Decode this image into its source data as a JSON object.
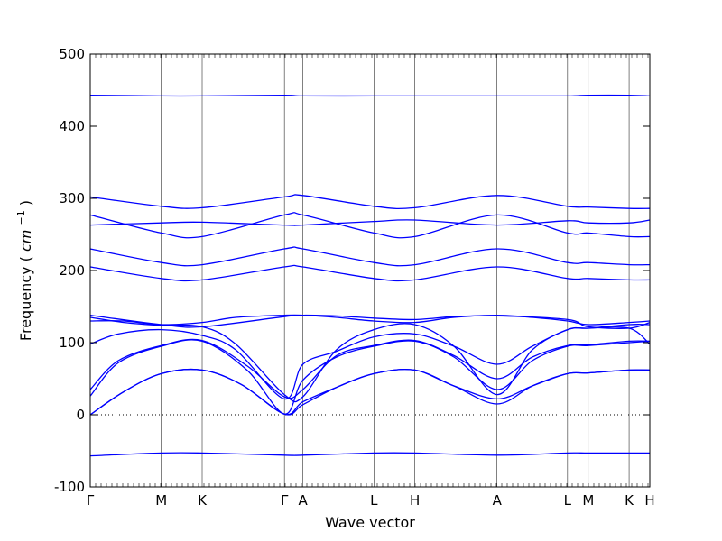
{
  "chart_data": {
    "type": "line",
    "xlabel": "Wave vector",
    "ylabel": "Frequency",
    "ylabel_unit_base": "cm",
    "ylabel_unit_exp": "−1",
    "ylim": [
      -100,
      500
    ],
    "yticks": [
      -100,
      0,
      100,
      200,
      300,
      400,
      500
    ],
    "zero_line": 0,
    "line_color": "#0000ff",
    "x_points": [
      0,
      0.127,
      0.2,
      0.347,
      0.38,
      0.507,
      0.58,
      0.727,
      0.853,
      0.89,
      0.963,
      1.0
    ],
    "x_labels": [
      "Γ",
      "M",
      "K",
      "Γ",
      "A",
      "L",
      "H",
      "A",
      "L",
      "M",
      "K",
      "H"
    ],
    "series": [
      {
        "x": [
          0,
          0.127,
          0.2,
          0.347,
          0.38,
          0.507,
          0.58,
          0.727,
          0.853,
          0.89,
          0.963,
          1.0
        ],
        "y": [
          -57,
          -53,
          -53,
          -56,
          -56,
          -53,
          -53,
          -56,
          -53,
          -53,
          -53,
          -53
        ]
      },
      {
        "x": [
          0,
          0.06,
          0.127,
          0.2,
          0.27,
          0.347,
          0.38,
          0.44,
          0.507,
          0.58,
          0.65,
          0.727,
          0.79,
          0.853,
          0.89,
          0.963,
          1.0
        ],
        "y": [
          0,
          32,
          57,
          62,
          42,
          1,
          14,
          38,
          57,
          62,
          40,
          15,
          40,
          57,
          58,
          62,
          62
        ]
      },
      {
        "x": [
          0,
          0.06,
          0.127,
          0.2,
          0.27,
          0.347,
          0.38,
          0.44,
          0.507,
          0.58,
          0.65,
          0.727,
          0.79,
          0.853,
          0.89,
          0.963,
          1.0
        ],
        "y": [
          0,
          32,
          57,
          62,
          42,
          1,
          18,
          38,
          57,
          62,
          40,
          22,
          40,
          57,
          58,
          62,
          62
        ]
      },
      {
        "x": [
          0,
          0.05,
          0.127,
          0.2,
          0.28,
          0.347,
          0.38,
          0.44,
          0.507,
          0.58,
          0.65,
          0.727,
          0.79,
          0.853,
          0.89,
          0.963,
          1.0
        ],
        "y": [
          26,
          72,
          95,
          102,
          62,
          1,
          48,
          80,
          95,
          102,
          80,
          35,
          75,
          95,
          96,
          100,
          102
        ]
      },
      {
        "x": [
          0,
          0.05,
          0.127,
          0.2,
          0.28,
          0.347,
          0.38,
          0.44,
          0.507,
          0.58,
          0.65,
          0.727,
          0.79,
          0.853,
          0.89,
          0.963,
          1.0
        ],
        "y": [
          35,
          75,
          96,
          103,
          68,
          25,
          35,
          82,
          96,
          103,
          82,
          50,
          80,
          96,
          97,
          102,
          102
        ]
      },
      {
        "x": [
          0,
          0.05,
          0.127,
          0.2,
          0.26,
          0.347,
          0.38,
          0.44,
          0.507,
          0.58,
          0.65,
          0.727,
          0.79,
          0.853,
          0.89,
          0.963,
          1.0
        ],
        "y": [
          98,
          112,
          118,
          110,
          90,
          22,
          70,
          88,
          108,
          112,
          95,
          70,
          95,
          118,
          120,
          120,
          98
        ]
      },
      {
        "x": [
          0,
          0.06,
          0.127,
          0.2,
          0.26,
          0.347,
          0.38,
          0.44,
          0.507,
          0.58,
          0.65,
          0.727,
          0.79,
          0.853,
          0.89,
          0.963,
          1.0
        ],
        "y": [
          135,
          128,
          124,
          122,
          98,
          28,
          25,
          90,
          118,
          125,
          95,
          28,
          90,
          118,
          120,
          125,
          125
        ]
      },
      {
        "x": [
          0,
          0.06,
          0.127,
          0.2,
          0.26,
          0.347,
          0.38,
          0.44,
          0.507,
          0.58,
          0.65,
          0.727,
          0.79,
          0.853,
          0.89,
          0.963,
          1.0
        ],
        "y": [
          130,
          130,
          125,
          128,
          135,
          138,
          138,
          135,
          130,
          128,
          135,
          138,
          135,
          130,
          125,
          128,
          130
        ]
      },
      {
        "x": [
          0,
          0.127,
          0.2,
          0.347,
          0.38,
          0.44,
          0.507,
          0.58,
          0.65,
          0.727,
          0.853,
          0.89,
          0.963,
          1.0
        ],
        "y": [
          138,
          125,
          122,
          136,
          138,
          137,
          134,
          132,
          136,
          137,
          132,
          122,
          120,
          128
        ]
      },
      {
        "x": [
          0,
          0.127,
          0.2,
          0.347,
          0.38,
          0.507,
          0.58,
          0.727,
          0.853,
          0.89,
          0.963,
          1.0
        ],
        "y": [
          205,
          189,
          187,
          205,
          205,
          189,
          187,
          205,
          189,
          189,
          187,
          187
        ]
      },
      {
        "x": [
          0,
          0.127,
          0.2,
          0.347,
          0.38,
          0.507,
          0.58,
          0.727,
          0.853,
          0.89,
          0.963,
          1.0
        ],
        "y": [
          230,
          211,
          208,
          230,
          230,
          211,
          208,
          230,
          211,
          211,
          208,
          208
        ]
      },
      {
        "x": [
          0,
          0.127,
          0.2,
          0.347,
          0.38,
          0.507,
          0.58,
          0.727,
          0.853,
          0.89,
          0.963,
          1.0
        ],
        "y": [
          263,
          266,
          267,
          263,
          263,
          268,
          270,
          263,
          269,
          266,
          266,
          270
        ]
      },
      {
        "x": [
          0,
          0.127,
          0.2,
          0.347,
          0.38,
          0.507,
          0.58,
          0.727,
          0.853,
          0.89,
          0.963,
          1.0
        ],
        "y": [
          277,
          252,
          247,
          277,
          277,
          252,
          247,
          277,
          252,
          252,
          247,
          247
        ]
      },
      {
        "x": [
          0,
          0.127,
          0.2,
          0.347,
          0.38,
          0.507,
          0.58,
          0.727,
          0.853,
          0.89,
          0.963,
          1.0
        ],
        "y": [
          302,
          289,
          287,
          302,
          304,
          289,
          287,
          304,
          289,
          288,
          286,
          286
        ]
      },
      {
        "x": [
          0,
          0.127,
          0.2,
          0.347,
          0.38,
          0.507,
          0.58,
          0.727,
          0.853,
          0.89,
          0.963,
          1.0
        ],
        "y": [
          443,
          442,
          442,
          443,
          442,
          442,
          442,
          442,
          442,
          443,
          443,
          442
        ]
      }
    ]
  }
}
